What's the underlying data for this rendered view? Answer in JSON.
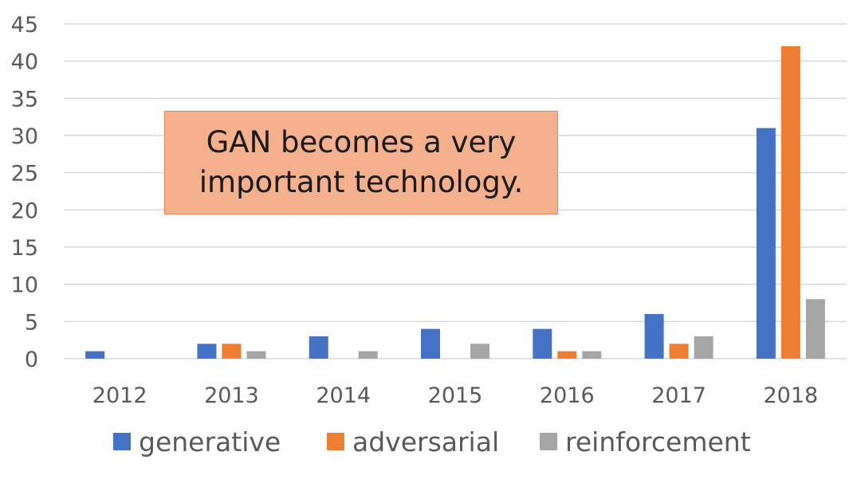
{
  "chart_data": {
    "type": "bar",
    "title": "",
    "xlabel": "",
    "ylabel": "",
    "categories": [
      "2012",
      "2013",
      "2014",
      "2015",
      "2016",
      "2017",
      "2018"
    ],
    "series": [
      {
        "name": "generative",
        "color": "#4472c4",
        "values": [
          1,
          2,
          3,
          4,
          4,
          6,
          31
        ]
      },
      {
        "name": "adversarial",
        "color": "#ed7d31",
        "values": [
          0,
          2,
          0,
          0,
          1,
          2,
          42
        ]
      },
      {
        "name": "reinforcement",
        "color": "#a5a5a5",
        "values": [
          0,
          1,
          1,
          2,
          1,
          3,
          8
        ]
      }
    ],
    "ylim": [
      0,
      45
    ],
    "yticks": [
      0,
      5,
      10,
      15,
      20,
      25,
      30,
      35,
      40,
      45
    ],
    "grid": true,
    "legend_position": "bottom",
    "annotation": "GAN becomes a very important technology."
  },
  "colors": {
    "annotation_fill": "#f4b08c",
    "annotation_border": "#e8855a",
    "gridline": "#d9d9d9",
    "axis_text": "#595959"
  }
}
